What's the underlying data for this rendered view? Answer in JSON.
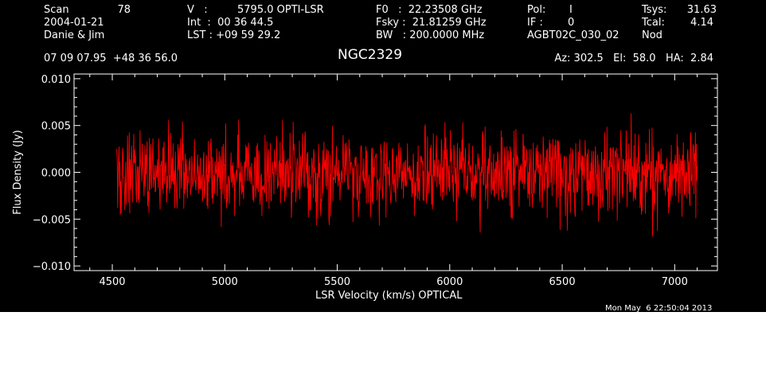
{
  "header": {
    "scan_label": "Scan",
    "scan_value": "78",
    "date": "2004-01-21",
    "observers": "Danie & Jim",
    "v_label": "V   :",
    "v_value": "5795.0 OPTI-LSR",
    "int_line": "Int  :  00 36 44.5",
    "lst_line": "LST : +09 59 29.2",
    "f0_line": "F0   :  22.23508 GHz",
    "fsky_line": "Fsky :  21.81259 GHz",
    "bw_line": "BW   : 200.0000 MHz",
    "pol_label": "Pol:",
    "pol_value": "I",
    "if_label": "IF :",
    "if_value": "0",
    "project": "AGBT02C_030_02",
    "tsys_label": "Tsys:",
    "tsys_value": "31.63",
    "tcal_label": "Tcal:",
    "tcal_value": "4.14",
    "procedure": "Nod",
    "coords": "07 09 07.95  +48 36 56.0",
    "source": "NGC2329",
    "az_el_ha": "Az: 302.5   El:  58.0   HA:  2.84",
    "timestamp": "Mon May  6 22:50:04 2013"
  },
  "chart_data": {
    "type": "line",
    "title": "NGC2329",
    "xlabel": "LSR Velocity (km/s) OPTICAL",
    "ylabel": "Flux Density (Jy)",
    "xlim": [
      4330,
      7190
    ],
    "ylim": [
      -0.0105,
      0.0105
    ],
    "x_ticks": [
      4500,
      5000,
      5500,
      6000,
      6500,
      7000
    ],
    "y_ticks": [
      -0.01,
      -0.005,
      0.0,
      0.005,
      0.01
    ],
    "x_tick_labels": [
      "4500",
      "5000",
      "5500",
      "6000",
      "6500",
      "7000"
    ],
    "y_tick_labels": [
      "−0.010",
      "−0.005",
      "0.000",
      "0.005",
      "0.010"
    ],
    "grid": false,
    "series": [
      {
        "color": "#ff0000",
        "x_range": [
          4520,
          7100
        ],
        "mean": 0.0,
        "rms": 0.0022,
        "approx_extremes": [
          -0.0075,
          0.008
        ]
      }
    ]
  },
  "colors": {
    "background": "#000000",
    "foreground": "#ffffff",
    "trace": "#ff0000",
    "page": "#ffffff"
  }
}
